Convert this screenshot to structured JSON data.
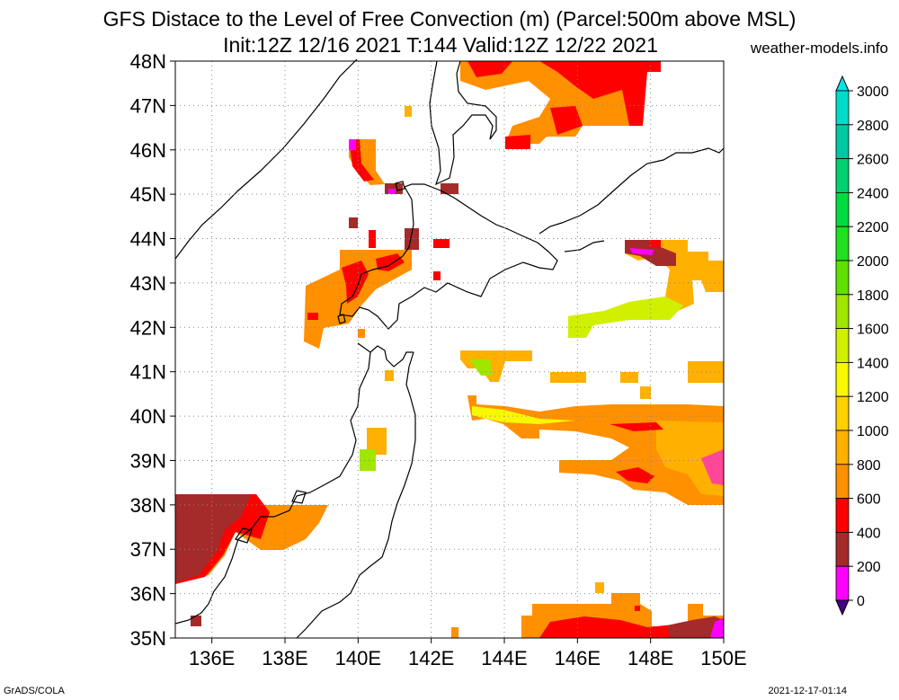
{
  "title": {
    "line1": "GFS Distace to the Level of Free Convection (m) (Parcel:500m above MSL)",
    "line2": "Init:12Z 12/16 2021 T:144 Valid:12Z 12/22 2021"
  },
  "site": "weather-models.info",
  "footer": {
    "left": "GrADS/COLA",
    "right": "2021-12-17-01:14"
  },
  "map": {
    "lat_labels": [
      "48N",
      "47N",
      "46N",
      "45N",
      "44N",
      "43N",
      "42N",
      "41N",
      "40N",
      "39N",
      "38N",
      "37N",
      "36N",
      "35N"
    ],
    "lon_labels": [
      "136E",
      "138E",
      "140E",
      "142E",
      "144E",
      "146E",
      "148E",
      "150E"
    ],
    "lat_range": [
      35,
      48
    ],
    "lon_range": [
      135,
      150
    ],
    "grid": "dotted"
  },
  "colorbar": {
    "labels": [
      "3000",
      "2800",
      "2600",
      "2400",
      "2200",
      "2000",
      "1800",
      "1600",
      "1400",
      "1200",
      "1000",
      "800",
      "600",
      "400",
      "200",
      "0"
    ],
    "colors": {
      "over": "#00e6e6",
      "bins": [
        "#00dcc8",
        "#00c8a0",
        "#00d070",
        "#00dc40",
        "#20e020",
        "#60e000",
        "#a0e600",
        "#d0f000",
        "#f8f800",
        "#ffd000",
        "#ffb000",
        "#ff9000",
        "#ff0000",
        "#a52a2a",
        "#ff00ff"
      ],
      "under": "#440088"
    }
  }
}
